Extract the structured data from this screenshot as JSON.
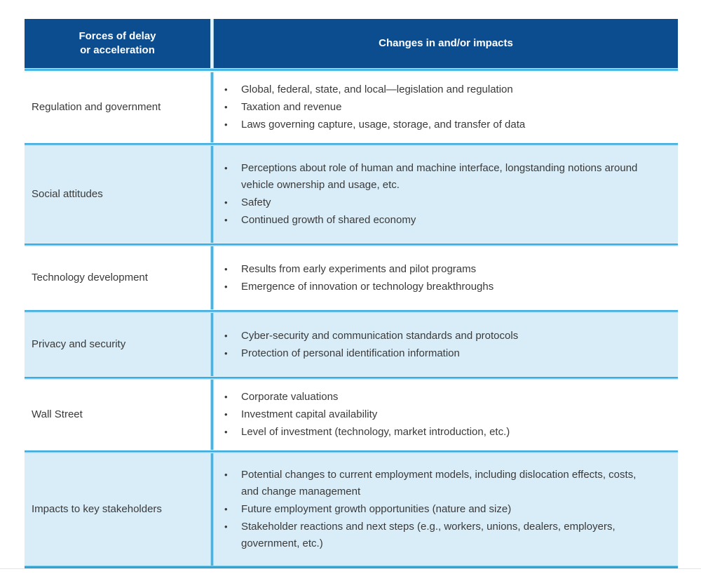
{
  "table": {
    "header": {
      "col1_line1": "Forces of delay",
      "col1_line2": "or acceleration",
      "col2": "Changes in and/or impacts"
    },
    "bullet_glyph": "•",
    "rows": [
      {
        "force": "Regulation and government",
        "impacts": [
          "Global, federal, state, and local—legislation and regulation",
          "Taxation and revenue",
          "Laws governing capture, usage, storage, and transfer of data"
        ]
      },
      {
        "force": "Social attitudes",
        "impacts": [
          "Perceptions about role of human and machine interface, longstanding notions around vehicle ownership and usage, etc.",
          "Safety",
          "Continued growth of shared economy"
        ]
      },
      {
        "force": "Technology development",
        "impacts": [
          "Results from early experiments and pilot programs",
          "Emergence of innovation or technology breakthroughs"
        ]
      },
      {
        "force": "Privacy and security",
        "impacts": [
          "Cyber-security and communication standards and protocols",
          "Protection of personal identification information"
        ]
      },
      {
        "force": "Wall Street",
        "impacts": [
          "Corporate valuations",
          "Investment capital availability",
          "Level of investment (technology, market introduction, etc.)"
        ]
      },
      {
        "force": "Impacts to key stakeholders",
        "impacts": [
          "Potential changes to current employment models, including dislocation effects, costs, and change management",
          "Future employment growth opportunities (nature and size)",
          "Stakeholder reactions and next steps (e.g., workers, unions, dealers, employers, government, etc.)"
        ]
      }
    ]
  },
  "colors": {
    "header_bg": "#0c4d90",
    "header_text": "#ffffff",
    "row_bg": "#ffffff",
    "row_alt_bg": "#d9edf8",
    "divider_cyan": "#3cadde",
    "divider_light": "#c2e6f5",
    "body_text": "#3a3a3a"
  }
}
